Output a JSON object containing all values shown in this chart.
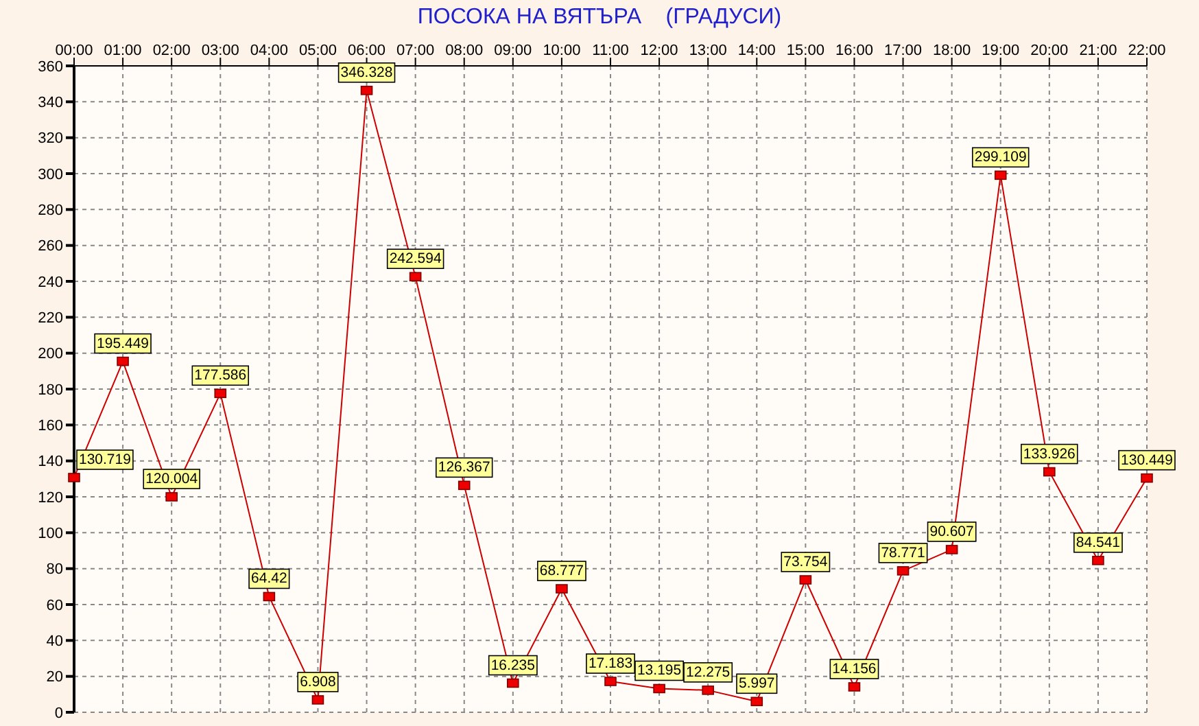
{
  "chart_data": {
    "type": "line",
    "title": "ПОСОКА НА ВЯТЪРА    (ГРАДУСИ)",
    "categories": [
      "00:00",
      "01:00",
      "02:00",
      "03:00",
      "04:00",
      "05:00",
      "06:00",
      "07:00",
      "08:00",
      "09:00",
      "10:00",
      "11:00",
      "12:00",
      "13:00",
      "14:00",
      "15:00",
      "16:00",
      "17:00",
      "18:00",
      "19:00",
      "20:00",
      "21:00",
      "22:00"
    ],
    "series": [
      {
        "color": "#cc0000",
        "values": [
          130.719,
          195.449,
          120.004,
          177.586,
          64.42,
          6.908,
          346.328,
          242.594,
          126.367,
          16.235,
          68.777,
          17.183,
          13.195,
          12.275,
          5.997,
          73.754,
          14.156,
          78.771,
          90.607,
          299.109,
          133.926,
          84.541,
          130.449
        ]
      }
    ],
    "ylim": [
      0,
      360
    ],
    "yticks": [
      0,
      20,
      40,
      60,
      80,
      100,
      120,
      140,
      160,
      180,
      200,
      220,
      240,
      260,
      280,
      300,
      320,
      340,
      360
    ],
    "grid": true,
    "marker": "square",
    "line_style": "solid",
    "data_labels": true
  }
}
